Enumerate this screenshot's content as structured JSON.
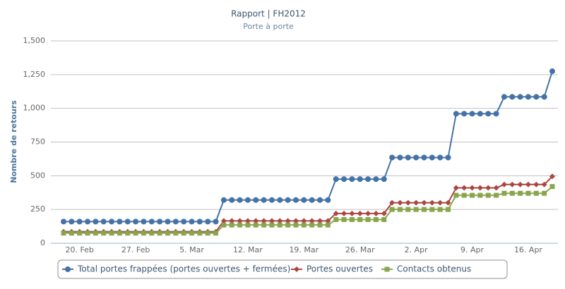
{
  "chart_data": {
    "type": "line",
    "title": "Rapport | FH2012",
    "subtitle": "Porte à porte",
    "y_axis_label": "Nombre de retours",
    "categories": [
      null,
      null,
      "20. Feb",
      null,
      null,
      null,
      null,
      null,
      null,
      "27. Feb",
      null,
      null,
      null,
      null,
      null,
      null,
      "5. Mar",
      null,
      null,
      null,
      null,
      null,
      null,
      "12. Mar",
      null,
      null,
      null,
      null,
      null,
      null,
      "19. Mar",
      null,
      null,
      null,
      null,
      null,
      null,
      "26. Mar",
      null,
      null,
      null,
      null,
      null,
      null,
      "2. Apr",
      null,
      null,
      null,
      null,
      null,
      null,
      "9. Apr",
      null,
      null,
      null,
      null,
      null,
      null,
      "16. Apr",
      null,
      null,
      null
    ],
    "series": [
      {
        "name": "Total portes frappées (portes ouvertes + fermées)",
        "color": "#4572A7",
        "marker": "circle",
        "values": [
          160,
          160,
          160,
          160,
          160,
          160,
          160,
          160,
          160,
          160,
          160,
          160,
          160,
          160,
          160,
          160,
          160,
          160,
          160,
          160,
          320,
          320,
          320,
          320,
          320,
          320,
          320,
          320,
          320,
          320,
          320,
          320,
          320,
          320,
          475,
          475,
          475,
          475,
          475,
          475,
          475,
          635,
          635,
          635,
          635,
          635,
          635,
          635,
          635,
          960,
          960,
          960,
          960,
          960,
          960,
          1085,
          1085,
          1085,
          1085,
          1085,
          1085,
          1275
        ]
      },
      {
        "name": "Portes ouvertes",
        "color": "#AA4643",
        "marker": "diamond",
        "values": [
          85,
          85,
          85,
          85,
          85,
          85,
          85,
          85,
          85,
          85,
          85,
          85,
          85,
          85,
          85,
          85,
          85,
          85,
          85,
          85,
          165,
          165,
          165,
          165,
          165,
          165,
          165,
          165,
          165,
          165,
          165,
          165,
          165,
          165,
          220,
          220,
          220,
          220,
          220,
          220,
          220,
          300,
          300,
          300,
          300,
          300,
          300,
          300,
          300,
          410,
          410,
          410,
          410,
          410,
          410,
          435,
          435,
          435,
          435,
          435,
          435,
          495
        ]
      },
      {
        "name": "Contacts obtenus",
        "color": "#89A54E",
        "marker": "square",
        "values": [
          75,
          75,
          75,
          75,
          75,
          75,
          75,
          75,
          75,
          75,
          75,
          75,
          75,
          75,
          75,
          75,
          75,
          75,
          75,
          75,
          135,
          135,
          135,
          135,
          135,
          135,
          135,
          135,
          135,
          135,
          135,
          135,
          135,
          135,
          175,
          175,
          175,
          175,
          175,
          175,
          175,
          250,
          250,
          250,
          250,
          250,
          250,
          250,
          250,
          355,
          355,
          355,
          355,
          355,
          355,
          370,
          370,
          370,
          370,
          370,
          370,
          420
        ]
      }
    ],
    "ylim": [
      0,
      1500
    ],
    "yticks": [
      0,
      250,
      500,
      750,
      {
        "value": 1000,
        "label": "1,000"
      },
      {
        "value": 1250,
        "label": "1,250"
      },
      {
        "value": 1500,
        "label": "1,500"
      }
    ],
    "grid": true,
    "legend": "bottom"
  }
}
